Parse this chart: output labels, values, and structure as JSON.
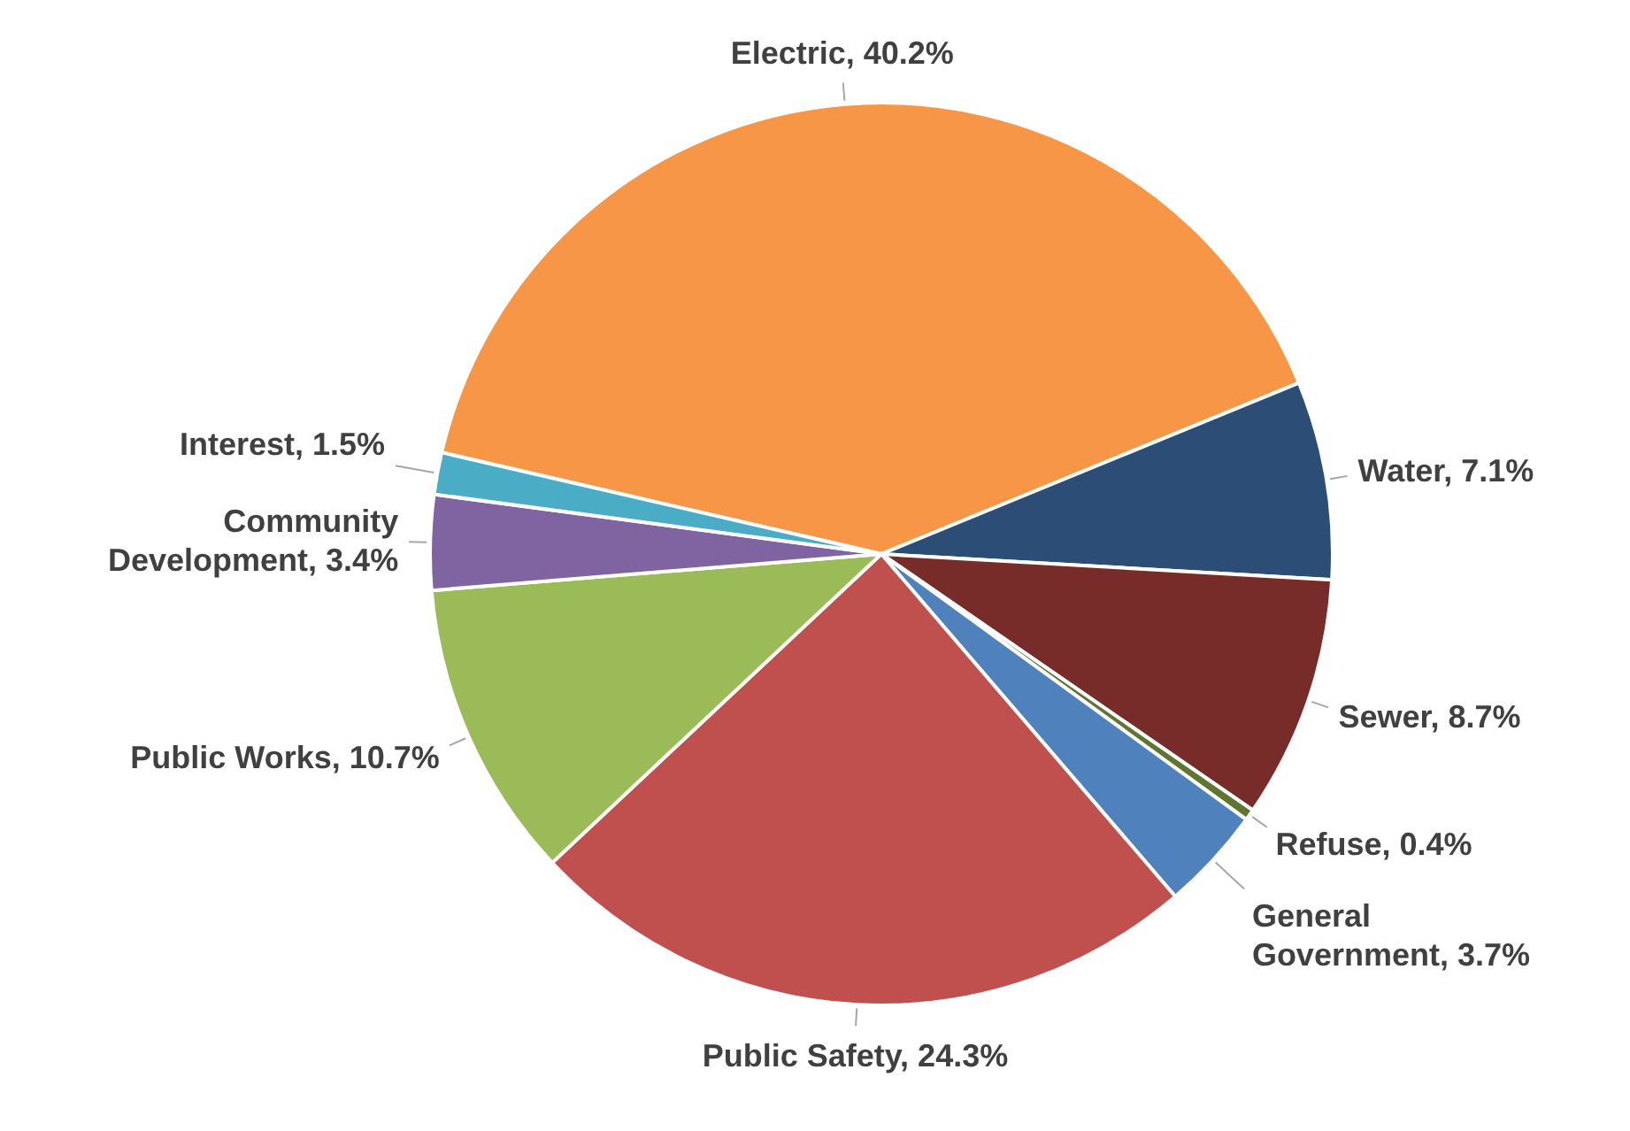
{
  "chart_data": {
    "type": "pie",
    "categories": [
      "Electric",
      "Water",
      "Sewer",
      "Refuse",
      "General Government",
      "Public Safety",
      "Public Works",
      "Community Development",
      "Interest"
    ],
    "values": [
      40.2,
      7.1,
      8.7,
      0.4,
      3.7,
      24.3,
      10.7,
      3.4,
      1.5
    ],
    "value_labels": [
      "40.2%",
      "7.1%",
      "8.7%",
      "0.4%",
      "3.7%",
      "24.3%",
      "10.7%",
      "3.4%",
      "1.5%"
    ],
    "colors": [
      "#f79646",
      "#2c4d75",
      "#772c2a",
      "#5f7530",
      "#4f81bd",
      "#c0504d",
      "#9bbb59",
      "#8064a2",
      "#4bacc6"
    ]
  }
}
